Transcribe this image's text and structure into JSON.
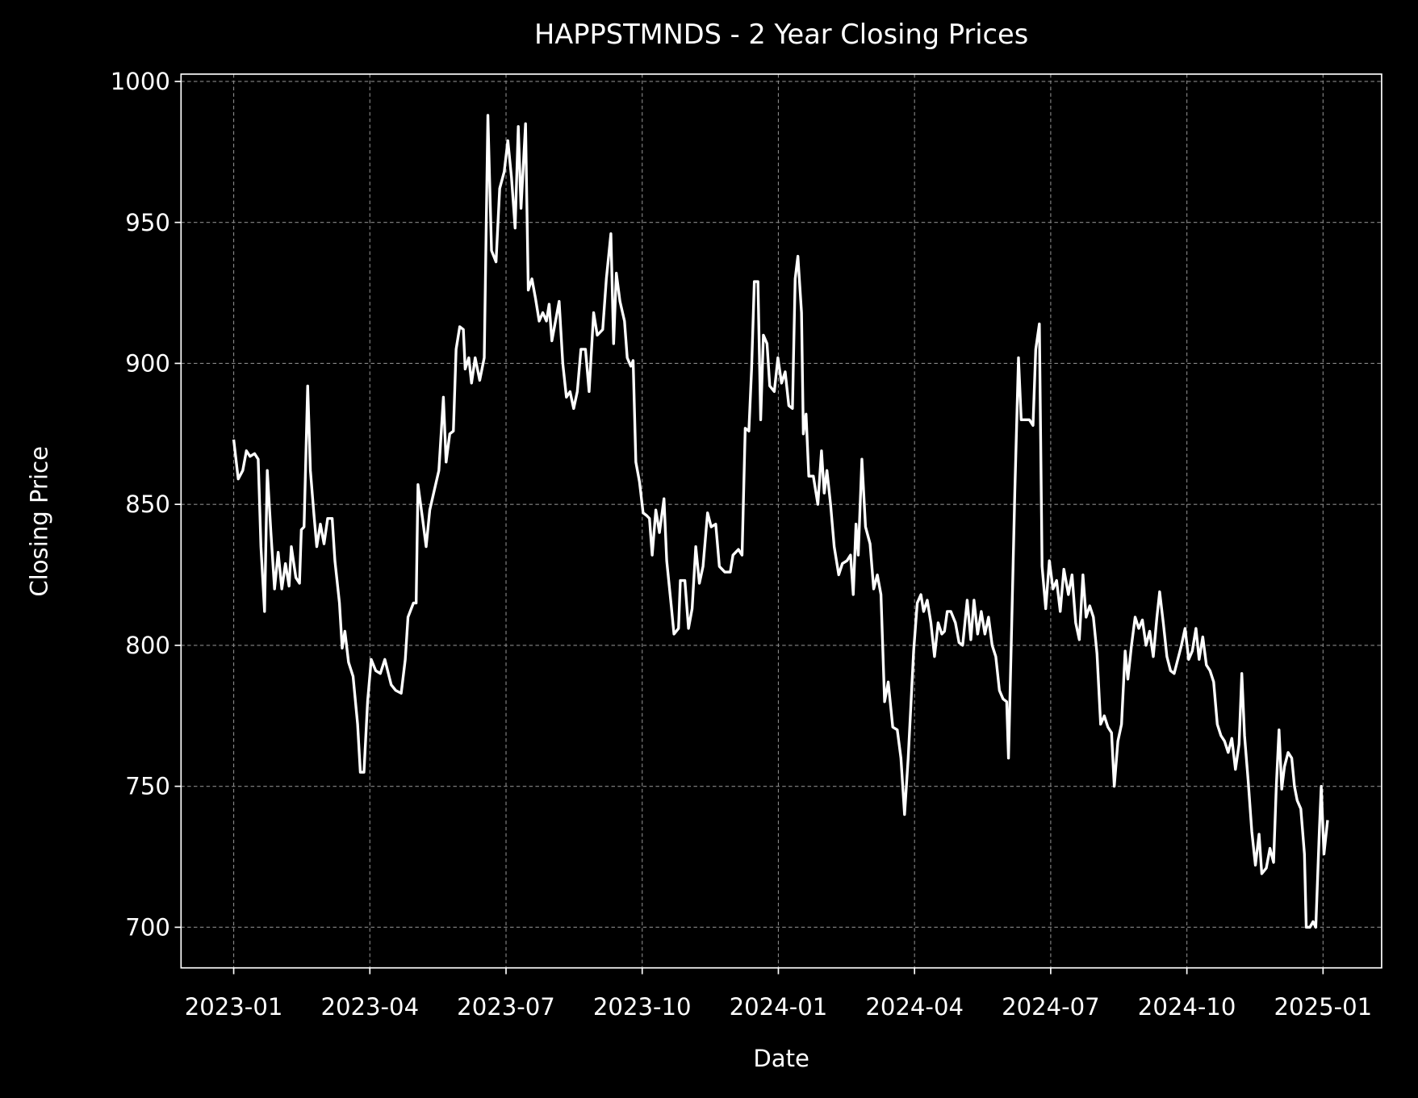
{
  "chart_data": {
    "type": "line",
    "title": "HAPPSTMNDS - 2 Year Closing Prices",
    "xlabel": "Date",
    "ylabel": "Closing Price",
    "color": "#ffffff",
    "grid": true,
    "xlim": [
      -1.16,
      25.29
    ],
    "ylim": [
      685.6,
      1002.6
    ],
    "xticks": [
      {
        "value": 0,
        "label": "2023-01"
      },
      {
        "value": 3,
        "label": "2023-04"
      },
      {
        "value": 6,
        "label": "2023-07"
      },
      {
        "value": 9,
        "label": "2023-10"
      },
      {
        "value": 12,
        "label": "2024-01"
      },
      {
        "value": 15,
        "label": "2024-04"
      },
      {
        "value": 18,
        "label": "2024-07"
      },
      {
        "value": 21,
        "label": "2024-10"
      },
      {
        "value": 24,
        "label": "2025-01"
      }
    ],
    "yticks": [
      700,
      750,
      800,
      850,
      900,
      950,
      1000
    ],
    "x": [
      0,
      0.1,
      0.2,
      0.28,
      0.36,
      0.46,
      0.54,
      0.6,
      0.68,
      0.74,
      0.82,
      0.9,
      0.98,
      1.06,
      1.14,
      1.22,
      1.27,
      1.37,
      1.45,
      1.49,
      1.55,
      1.63,
      1.69,
      1.77,
      1.83,
      1.91,
      1.99,
      2.07,
      2.17,
      2.23,
      2.33,
      2.39,
      2.45,
      2.53,
      2.63,
      2.73,
      2.79,
      2.87,
      2.95,
      3.03,
      3.13,
      3.23,
      3.33,
      3.47,
      3.57,
      3.69,
      3.78,
      3.84,
      3.96,
      4.02,
      4.06,
      4.16,
      4.24,
      4.32,
      4.42,
      4.52,
      4.62,
      4.68,
      4.76,
      4.84,
      4.9,
      4.98,
      5.06,
      5.1,
      5.18,
      5.24,
      5.32,
      5.42,
      5.52,
      5.6,
      5.68,
      5.78,
      5.86,
      5.96,
      6.04,
      6.12,
      6.2,
      6.27,
      6.33,
      6.43,
      6.49,
      6.57,
      6.65,
      6.73,
      6.81,
      6.89,
      6.95,
      7.01,
      7.09,
      7.17,
      7.25,
      7.33,
      7.41,
      7.49,
      7.57,
      7.65,
      7.75,
      7.83,
      7.93,
      8.01,
      8.13,
      8.21,
      8.31,
      8.37,
      8.43,
      8.51,
      8.61,
      8.67,
      8.75,
      8.8,
      8.86,
      8.94,
      9.02,
      9.1,
      9.16,
      9.22,
      9.3,
      9.38,
      9.48,
      9.54,
      9.64,
      9.7,
      9.8,
      9.84,
      9.94,
      10.02,
      10.1,
      10.18,
      10.26,
      10.34,
      10.44,
      10.52,
      10.62,
      10.7,
      10.82,
      10.94,
      11.0,
      11.12,
      11.2,
      11.27,
      11.35,
      11.41,
      11.47,
      11.55,
      11.61,
      11.67,
      11.75,
      11.81,
      11.91,
      11.99,
      12.07,
      12.15,
      12.23,
      12.31,
      12.37,
      12.43,
      12.51,
      12.55,
      12.61,
      12.67,
      12.77,
      12.87,
      12.95,
      13.01,
      13.07,
      13.15,
      13.23,
      13.33,
      13.41,
      13.51,
      13.59,
      13.65,
      13.71,
      13.76,
      13.84,
      13.92,
      14.02,
      14.1,
      14.18,
      14.26,
      14.34,
      14.42,
      14.52,
      14.62,
      14.7,
      14.78,
      14.86,
      14.98,
      15.06,
      15.14,
      15.2,
      15.28,
      15.36,
      15.44,
      15.52,
      15.6,
      15.66,
      15.72,
      15.8,
      15.9,
      15.98,
      16.06,
      16.16,
      16.24,
      16.31,
      16.39,
      16.47,
      16.55,
      16.63,
      16.71,
      16.79,
      16.87,
      16.95,
      17.03,
      17.07,
      17.13,
      17.21,
      17.29,
      17.35,
      17.45,
      17.53,
      17.61,
      17.67,
      17.75,
      17.81,
      17.89,
      17.97,
      18.05,
      18.13,
      18.21,
      18.29,
      18.39,
      18.47,
      18.55,
      18.63,
      18.71,
      18.78,
      18.86,
      18.94,
      19.02,
      19.1,
      19.18,
      19.26,
      19.34,
      19.4,
      19.48,
      19.56,
      19.64,
      19.7,
      19.78,
      19.86,
      19.94,
      20.02,
      20.1,
      20.18,
      20.26,
      20.34,
      20.4,
      20.48,
      20.56,
      20.64,
      20.72,
      20.8,
      20.88,
      20.96,
      21.04,
      21.12,
      21.2,
      21.27,
      21.35,
      21.43,
      21.51,
      21.59,
      21.67,
      21.75,
      21.83,
      21.91,
      21.99,
      22.07,
      22.15,
      22.21,
      22.27,
      22.35,
      22.43,
      22.51,
      22.59,
      22.65,
      22.75,
      22.83,
      22.91,
      22.97,
      23.03,
      23.09,
      23.15,
      23.23,
      23.31,
      23.37,
      23.43,
      23.51,
      23.59,
      23.63,
      23.71,
      23.78,
      23.84,
      23.92,
      23.96,
      24.02,
      24.1
    ],
    "values": [
      873,
      859,
      862,
      869,
      867,
      868,
      866,
      835,
      812,
      862,
      840,
      820,
      833,
      820,
      829,
      821,
      835,
      824,
      822,
      841,
      842,
      892,
      862,
      846,
      835,
      843,
      836,
      845,
      845,
      830,
      815,
      799,
      805,
      794,
      789,
      772,
      755,
      755,
      780,
      795,
      791,
      790,
      795,
      786,
      784,
      783,
      795,
      810,
      815,
      815,
      857,
      845,
      835,
      848,
      855,
      862,
      888,
      865,
      875,
      876,
      905,
      913,
      912,
      898,
      902,
      893,
      902,
      894,
      902,
      988,
      940,
      936,
      962,
      968,
      979,
      966,
      948,
      984,
      955,
      985,
      926,
      930,
      923,
      915,
      918,
      915,
      921,
      908,
      915,
      922,
      900,
      888,
      890,
      884,
      890,
      905,
      905,
      890,
      918,
      910,
      912,
      930,
      946,
      907,
      932,
      922,
      915,
      902,
      899,
      901,
      865,
      858,
      847,
      846,
      845,
      832,
      848,
      840,
      852,
      830,
      814,
      804,
      806,
      823,
      823,
      806,
      813,
      835,
      822,
      828,
      847,
      842,
      843,
      828,
      826,
      826,
      832,
      834,
      832,
      877,
      876,
      898,
      929,
      929,
      880,
      910,
      907,
      892,
      890,
      902,
      893,
      897,
      885,
      884,
      930,
      938,
      918,
      875,
      882,
      860,
      860,
      850,
      869,
      854,
      862,
      850,
      835,
      825,
      829,
      830,
      832,
      818,
      843,
      832,
      866,
      842,
      836,
      820,
      825,
      818,
      780,
      787,
      771,
      770,
      760,
      740,
      760,
      798,
      815,
      818,
      812,
      816,
      808,
      796,
      808,
      804,
      805,
      812,
      812,
      808,
      801,
      800,
      816,
      802,
      816,
      804,
      812,
      804,
      810,
      800,
      796,
      784,
      781,
      780,
      760,
      800,
      855,
      902,
      880,
      880,
      880,
      878,
      905,
      914,
      828,
      813,
      830,
      820,
      823,
      812,
      827,
      818,
      825,
      808,
      802,
      825,
      810,
      814,
      810,
      797,
      772,
      775,
      771,
      769,
      750,
      766,
      772,
      798,
      788,
      800,
      810,
      806,
      809,
      800,
      805,
      796,
      810,
      819,
      808,
      796,
      791,
      790,
      795,
      800,
      806,
      795,
      798,
      806,
      795,
      803,
      793,
      791,
      787,
      772,
      768,
      766,
      762,
      767,
      756,
      765,
      790,
      768,
      752,
      734,
      722,
      733,
      719,
      721,
      728,
      723,
      750,
      770,
      749,
      757,
      762,
      760,
      750,
      745,
      742,
      726,
      700,
      700,
      702,
      700,
      735,
      750,
      726,
      738
    ]
  }
}
